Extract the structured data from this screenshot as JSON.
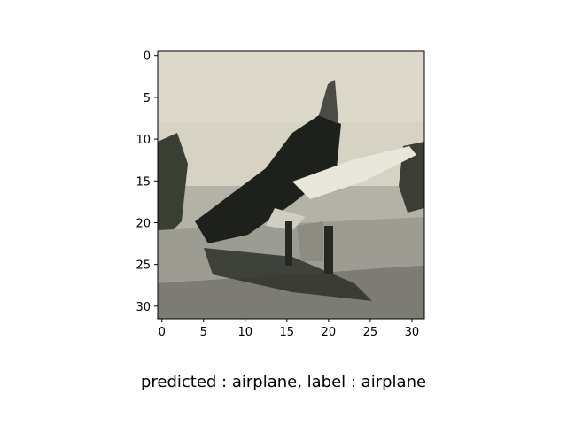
{
  "image": {
    "subject": "airplane-photo",
    "pixel_grid": [
      32,
      32
    ],
    "palette": {
      "sky_light": "#d8d4c6",
      "sky_mid": "#cfcabc",
      "plane_dark": "#1e211c",
      "ground_gray": "#a6a59b",
      "shadow": "#3d3f36",
      "wing_highlight": "#ebe8de"
    }
  },
  "axes": {
    "x_ticks": [
      "0",
      "5",
      "10",
      "15",
      "20",
      "25",
      "30"
    ],
    "y_ticks": [
      "0",
      "5",
      "10",
      "15",
      "20",
      "25",
      "30"
    ],
    "xlim": [
      -0.5,
      31.5
    ],
    "ylim": [
      31.5,
      -0.5
    ]
  },
  "caption": "predicted : airplane, label : airplane"
}
